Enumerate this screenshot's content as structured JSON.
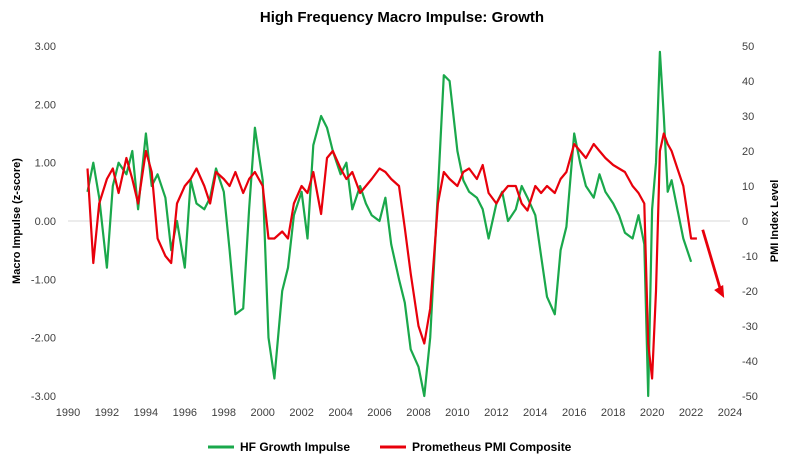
{
  "chart_data": {
    "type": "line",
    "title": "High Frequency Macro Impulse: Growth",
    "ylabel_left": "Macro Impulse (z-score)",
    "ylabel_right": "PMI Index Level",
    "xlim": [
      1990,
      2024
    ],
    "ylim_left": [
      -3.0,
      3.0
    ],
    "ylim_right": [
      -50,
      50
    ],
    "x_ticks": [
      "1990",
      "1992",
      "1994",
      "1996",
      "1998",
      "2000",
      "2002",
      "2004",
      "2006",
      "2008",
      "2010",
      "2012",
      "2014",
      "2016",
      "2018",
      "2020",
      "2022",
      "2024"
    ],
    "y_left_ticks": [
      "3.00",
      "2.00",
      "1.00",
      "0.00",
      "-1.00",
      "-2.00",
      "-3.00"
    ],
    "y_right_ticks": [
      "50",
      "40",
      "30",
      "20",
      "10",
      "0",
      "-10",
      "-20",
      "-30",
      "-40",
      "-50"
    ],
    "grid": false,
    "legend_position": "bottom",
    "colors": {
      "hf": "#1aa84b",
      "pmi": "#e8000b",
      "arrow": "#e8000b"
    },
    "series": [
      {
        "name": "HF Growth Impulse",
        "axis": "left",
        "color": "#1aa84b",
        "x": [
          1991.0,
          1991.3,
          1991.6,
          1992.0,
          1992.3,
          1992.6,
          1993.0,
          1993.3,
          1993.6,
          1994.0,
          1994.3,
          1994.6,
          1995.0,
          1995.3,
          1995.6,
          1996.0,
          1996.3,
          1996.6,
          1997.0,
          1997.3,
          1997.6,
          1998.0,
          1998.3,
          1998.6,
          1999.0,
          1999.3,
          1999.6,
          2000.0,
          2000.3,
          2000.6,
          2001.0,
          2001.3,
          2001.6,
          2002.0,
          2002.3,
          2002.6,
          2003.0,
          2003.3,
          2003.6,
          2004.0,
          2004.3,
          2004.6,
          2005.0,
          2005.3,
          2005.6,
          2006.0,
          2006.3,
          2006.6,
          2007.0,
          2007.3,
          2007.6,
          2008.0,
          2008.3,
          2008.6,
          2009.0,
          2009.3,
          2009.6,
          2010.0,
          2010.3,
          2010.6,
          2011.0,
          2011.3,
          2011.6,
          2012.0,
          2012.3,
          2012.6,
          2013.0,
          2013.3,
          2013.6,
          2014.0,
          2014.3,
          2014.6,
          2015.0,
          2015.3,
          2015.6,
          2016.0,
          2016.3,
          2016.6,
          2017.0,
          2017.3,
          2017.6,
          2018.0,
          2018.3,
          2018.6,
          2019.0,
          2019.3,
          2019.6,
          2019.8,
          2020.0,
          2020.2,
          2020.4,
          2020.6,
          2020.8,
          2021.0,
          2021.3,
          2021.6,
          2022.0
        ],
        "values": [
          0.5,
          1.0,
          0.4,
          -0.8,
          0.6,
          1.0,
          0.8,
          1.2,
          0.2,
          1.5,
          0.6,
          0.8,
          0.4,
          -0.5,
          0.0,
          -0.8,
          0.7,
          0.3,
          0.2,
          0.4,
          0.9,
          0.5,
          -0.5,
          -1.6,
          -1.5,
          0.2,
          1.6,
          0.7,
          -2.0,
          -2.7,
          -1.2,
          -0.8,
          0.1,
          0.5,
          -0.3,
          1.3,
          1.8,
          1.6,
          1.2,
          0.8,
          1.0,
          0.2,
          0.6,
          0.3,
          0.1,
          0.0,
          0.4,
          -0.4,
          -1.0,
          -1.4,
          -2.2,
          -2.5,
          -3.0,
          -2.0,
          0.5,
          2.5,
          2.4,
          1.2,
          0.7,
          0.5,
          0.4,
          0.2,
          -0.3,
          0.3,
          0.5,
          0.0,
          0.2,
          0.6,
          0.4,
          0.1,
          -0.6,
          -1.3,
          -1.6,
          -0.5,
          -0.1,
          1.5,
          1.0,
          0.6,
          0.4,
          0.8,
          0.5,
          0.3,
          0.1,
          -0.2,
          -0.3,
          0.1,
          -0.4,
          -3.0,
          0.2,
          1.0,
          2.9,
          1.8,
          0.5,
          0.7,
          0.2,
          -0.3,
          -0.7
        ]
      },
      {
        "name": "Prometheus PMI Composite",
        "axis": "right",
        "color": "#e8000b",
        "x": [
          1991.0,
          1991.3,
          1991.6,
          1992.0,
          1992.3,
          1992.6,
          1993.0,
          1993.3,
          1993.6,
          1994.0,
          1994.3,
          1994.6,
          1995.0,
          1995.3,
          1995.6,
          1996.0,
          1996.3,
          1996.6,
          1997.0,
          1997.3,
          1997.6,
          1998.0,
          1998.3,
          1998.6,
          1999.0,
          1999.3,
          1999.6,
          2000.0,
          2000.3,
          2000.6,
          2001.0,
          2001.3,
          2001.6,
          2002.0,
          2002.3,
          2002.6,
          2003.0,
          2003.3,
          2003.6,
          2004.0,
          2004.3,
          2004.6,
          2005.0,
          2005.3,
          2005.6,
          2006.0,
          2006.3,
          2006.6,
          2007.0,
          2007.3,
          2007.6,
          2008.0,
          2008.3,
          2008.6,
          2009.0,
          2009.3,
          2009.6,
          2010.0,
          2010.3,
          2010.6,
          2011.0,
          2011.3,
          2011.6,
          2012.0,
          2012.3,
          2012.6,
          2013.0,
          2013.3,
          2013.6,
          2014.0,
          2014.3,
          2014.6,
          2015.0,
          2015.3,
          2015.6,
          2016.0,
          2016.3,
          2016.6,
          2017.0,
          2017.3,
          2017.6,
          2018.0,
          2018.3,
          2018.6,
          2019.0,
          2019.3,
          2019.6,
          2019.8,
          2020.0,
          2020.2,
          2020.4,
          2020.6,
          2020.8,
          2021.0,
          2021.3,
          2021.6,
          2022.0,
          2022.3
        ],
        "values": [
          15,
          -12,
          5,
          12,
          15,
          8,
          18,
          12,
          5,
          20,
          14,
          -5,
          -10,
          -12,
          5,
          10,
          12,
          15,
          10,
          5,
          14,
          12,
          10,
          14,
          8,
          12,
          14,
          10,
          -5,
          -5,
          -3,
          -5,
          5,
          10,
          8,
          14,
          2,
          18,
          20,
          15,
          12,
          14,
          8,
          10,
          12,
          15,
          14,
          12,
          10,
          -2,
          -15,
          -30,
          -35,
          -25,
          5,
          14,
          12,
          10,
          14,
          15,
          12,
          16,
          8,
          5,
          8,
          10,
          10,
          5,
          3,
          10,
          8,
          10,
          8,
          12,
          14,
          22,
          20,
          18,
          22,
          20,
          18,
          16,
          15,
          14,
          10,
          8,
          5,
          -35,
          -45,
          -20,
          20,
          25,
          22,
          20,
          15,
          10,
          -5,
          -5
        ]
      }
    ],
    "annotation": "downward-arrow"
  },
  "legend": {
    "items": [
      {
        "label": "HF Growth Impulse",
        "color": "#1aa84b"
      },
      {
        "label": "Prometheus PMI Composite",
        "color": "#e8000b"
      }
    ]
  }
}
